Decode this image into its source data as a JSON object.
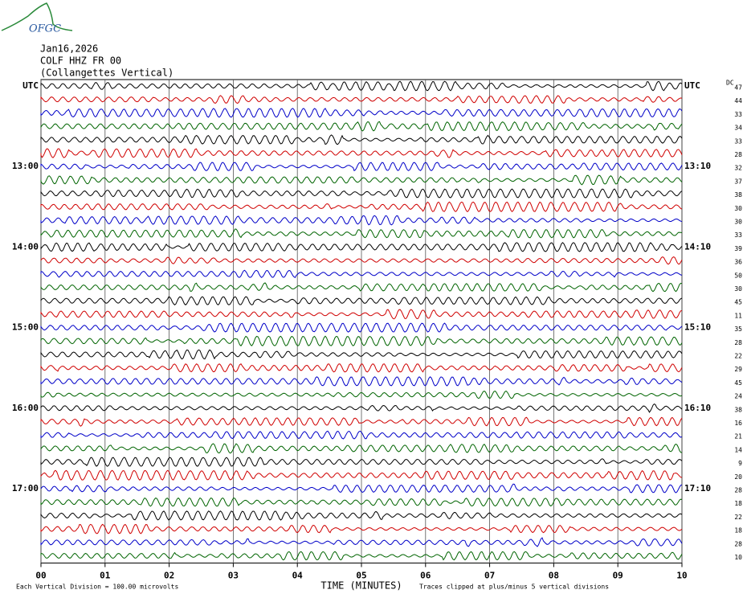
{
  "logo_text": "OFGC",
  "header": {
    "date": "Jan16,2026",
    "station": "COLF HHZ FR 00",
    "location": "(Collangettes Vertical)"
  },
  "dc_label": "DC",
  "rows": [
    {
      "left": "UTC",
      "right": "UTC",
      "dc": 47
    },
    {
      "left": null,
      "right": null,
      "dc": 44
    },
    {
      "left": null,
      "right": null,
      "dc": 33
    },
    {
      "left": null,
      "right": null,
      "dc": 34
    },
    {
      "left": null,
      "right": null,
      "dc": 33
    },
    {
      "left": null,
      "right": null,
      "dc": 28
    },
    {
      "left": "13:00",
      "right": "13:10",
      "dc": 32
    },
    {
      "left": null,
      "right": null,
      "dc": 37
    },
    {
      "left": null,
      "right": null,
      "dc": 38
    },
    {
      "left": null,
      "right": null,
      "dc": 30
    },
    {
      "left": null,
      "right": null,
      "dc": 30
    },
    {
      "left": null,
      "right": null,
      "dc": 33
    },
    {
      "left": "14:00",
      "right": "14:10",
      "dc": 39
    },
    {
      "left": null,
      "right": null,
      "dc": 36
    },
    {
      "left": null,
      "right": null,
      "dc": 50
    },
    {
      "left": null,
      "right": null,
      "dc": 30
    },
    {
      "left": null,
      "right": null,
      "dc": 45
    },
    {
      "left": null,
      "right": null,
      "dc": 11
    },
    {
      "left": "15:00",
      "right": "15:10",
      "dc": 35
    },
    {
      "left": null,
      "right": null,
      "dc": 28
    },
    {
      "left": null,
      "right": null,
      "dc": 22
    },
    {
      "left": null,
      "right": null,
      "dc": 29
    },
    {
      "left": null,
      "right": null,
      "dc": 45
    },
    {
      "left": null,
      "right": null,
      "dc": 24
    },
    {
      "left": "16:00",
      "right": "16:10",
      "dc": 38
    },
    {
      "left": null,
      "right": null,
      "dc": 16
    },
    {
      "left": null,
      "right": null,
      "dc": 21
    },
    {
      "left": null,
      "right": null,
      "dc": 14
    },
    {
      "left": null,
      "right": null,
      "dc": 9
    },
    {
      "left": null,
      "right": null,
      "dc": 20
    },
    {
      "left": "17:00",
      "right": "17:10",
      "dc": 28
    },
    {
      "left": null,
      "right": null,
      "dc": 18
    },
    {
      "left": null,
      "right": null,
      "dc": 22
    },
    {
      "left": null,
      "right": null,
      "dc": 18
    },
    {
      "left": null,
      "right": null,
      "dc": 28
    },
    {
      "left": null,
      "right": null,
      "dc": 10
    }
  ],
  "x_axis": {
    "ticks": [
      "00",
      "01",
      "02",
      "03",
      "04",
      "05",
      "06",
      "07",
      "08",
      "09",
      "10"
    ],
    "title": "TIME (MINUTES)"
  },
  "footer": {
    "scale": "Each Vertical Division =  100.00 microvolts",
    "note": "Traces clipped at plus/minus 5 vertical divisions"
  }
}
